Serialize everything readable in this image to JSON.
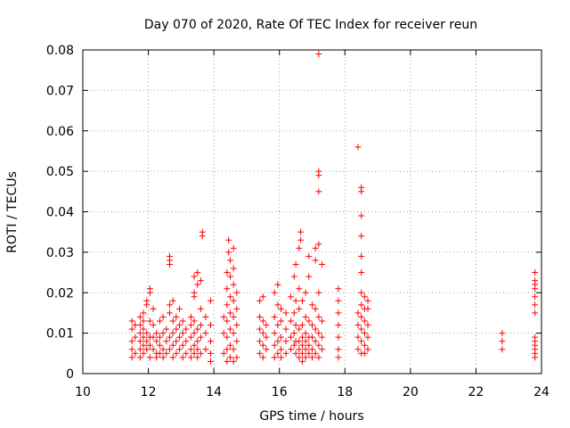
{
  "chart_data": {
    "type": "scatter",
    "title": "Day 070 of 2020, Rate Of TEC Index for receiver reun",
    "xlabel": "GPS time / hours",
    "ylabel": "ROTI / TECUs",
    "xlim": [
      10,
      24
    ],
    "ylim": [
      0,
      0.08
    ],
    "xticks": [
      10,
      12,
      14,
      16,
      18,
      20,
      22,
      24
    ],
    "yticks": [
      0,
      0.01,
      0.02,
      0.03,
      0.04,
      0.05,
      0.06,
      0.07,
      0.08
    ],
    "ytick_labels": [
      "0",
      "0.01",
      "0.02",
      "0.03",
      "0.04",
      "0.05",
      "0.06",
      "0.07",
      "0.08"
    ],
    "grid": true,
    "marker": "+",
    "color": "#ff0000",
    "series": [
      {
        "values": [
          [
            11.5,
            0.004
          ],
          [
            11.5,
            0.006
          ],
          [
            11.5,
            0.008
          ],
          [
            11.5,
            0.011
          ],
          [
            11.5,
            0.013
          ],
          [
            11.6,
            0.005
          ],
          [
            11.6,
            0.009
          ],
          [
            11.6,
            0.012
          ],
          [
            11.75,
            0.004
          ],
          [
            11.75,
            0.006
          ],
          [
            11.75,
            0.008
          ],
          [
            11.75,
            0.01
          ],
          [
            11.75,
            0.012
          ],
          [
            11.75,
            0.014
          ],
          [
            11.85,
            0.005
          ],
          [
            11.85,
            0.007
          ],
          [
            11.85,
            0.009
          ],
          [
            11.85,
            0.011
          ],
          [
            11.85,
            0.013
          ],
          [
            11.85,
            0.015
          ],
          [
            11.95,
            0.006
          ],
          [
            11.95,
            0.008
          ],
          [
            11.95,
            0.01
          ],
          [
            11.95,
            0.017
          ],
          [
            11.95,
            0.018
          ],
          [
            12.05,
            0.004
          ],
          [
            12.05,
            0.007
          ],
          [
            12.05,
            0.009
          ],
          [
            12.05,
            0.013
          ],
          [
            12.05,
            0.02
          ],
          [
            12.05,
            0.021
          ],
          [
            12.15,
            0.006
          ],
          [
            12.15,
            0.009
          ],
          [
            12.15,
            0.012
          ],
          [
            12.15,
            0.016
          ],
          [
            12.25,
            0.004
          ],
          [
            12.25,
            0.005
          ],
          [
            12.25,
            0.008
          ],
          [
            12.25,
            0.01
          ],
          [
            12.35,
            0.005
          ],
          [
            12.35,
            0.007
          ],
          [
            12.35,
            0.009
          ],
          [
            12.35,
            0.013
          ],
          [
            12.45,
            0.004
          ],
          [
            12.45,
            0.006
          ],
          [
            12.45,
            0.01
          ],
          [
            12.45,
            0.014
          ],
          [
            12.55,
            0.005
          ],
          [
            12.55,
            0.008
          ],
          [
            12.55,
            0.011
          ],
          [
            12.65,
            0.006
          ],
          [
            12.65,
            0.009
          ],
          [
            12.65,
            0.015
          ],
          [
            12.65,
            0.017
          ],
          [
            12.65,
            0.027
          ],
          [
            12.65,
            0.028
          ],
          [
            12.65,
            0.029
          ],
          [
            12.75,
            0.004
          ],
          [
            12.75,
            0.007
          ],
          [
            12.75,
            0.01
          ],
          [
            12.75,
            0.013
          ],
          [
            12.75,
            0.018
          ],
          [
            12.85,
            0.005
          ],
          [
            12.85,
            0.008
          ],
          [
            12.85,
            0.011
          ],
          [
            12.85,
            0.014
          ],
          [
            12.95,
            0.006
          ],
          [
            12.95,
            0.009
          ],
          [
            12.95,
            0.012
          ],
          [
            12.95,
            0.016
          ],
          [
            13.05,
            0.004
          ],
          [
            13.05,
            0.007
          ],
          [
            13.05,
            0.01
          ],
          [
            13.05,
            0.013
          ],
          [
            13.15,
            0.005
          ],
          [
            13.15,
            0.008
          ],
          [
            13.15,
            0.011
          ],
          [
            13.3,
            0.004
          ],
          [
            13.3,
            0.006
          ],
          [
            13.3,
            0.009
          ],
          [
            13.3,
            0.012
          ],
          [
            13.3,
            0.014
          ],
          [
            13.4,
            0.005
          ],
          [
            13.4,
            0.007
          ],
          [
            13.4,
            0.01
          ],
          [
            13.4,
            0.013
          ],
          [
            13.4,
            0.019
          ],
          [
            13.4,
            0.02
          ],
          [
            13.4,
            0.024
          ],
          [
            13.5,
            0.004
          ],
          [
            13.5,
            0.006
          ],
          [
            13.5,
            0.008
          ],
          [
            13.5,
            0.011
          ],
          [
            13.5,
            0.022
          ],
          [
            13.5,
            0.025
          ],
          [
            13.6,
            0.005
          ],
          [
            13.6,
            0.009
          ],
          [
            13.6,
            0.012
          ],
          [
            13.6,
            0.016
          ],
          [
            13.6,
            0.023
          ],
          [
            13.65,
            0.034
          ],
          [
            13.65,
            0.035
          ],
          [
            13.75,
            0.006
          ],
          [
            13.75,
            0.01
          ],
          [
            13.75,
            0.014
          ],
          [
            13.9,
            0.003
          ],
          [
            13.9,
            0.005
          ],
          [
            13.9,
            0.008
          ],
          [
            13.9,
            0.012
          ],
          [
            13.9,
            0.018
          ],
          [
            14.3,
            0.005
          ],
          [
            14.3,
            0.01
          ],
          [
            14.3,
            0.014
          ],
          [
            14.4,
            0.003
          ],
          [
            14.4,
            0.006
          ],
          [
            14.4,
            0.009
          ],
          [
            14.4,
            0.013
          ],
          [
            14.4,
            0.017
          ],
          [
            14.4,
            0.021
          ],
          [
            14.4,
            0.025
          ],
          [
            14.45,
            0.03
          ],
          [
            14.45,
            0.033
          ],
          [
            14.5,
            0.004
          ],
          [
            14.5,
            0.007
          ],
          [
            14.5,
            0.011
          ],
          [
            14.5,
            0.015
          ],
          [
            14.5,
            0.019
          ],
          [
            14.5,
            0.024
          ],
          [
            14.5,
            0.028
          ],
          [
            14.6,
            0.003
          ],
          [
            14.6,
            0.006
          ],
          [
            14.6,
            0.01
          ],
          [
            14.6,
            0.014
          ],
          [
            14.6,
            0.018
          ],
          [
            14.6,
            0.022
          ],
          [
            14.6,
            0.026
          ],
          [
            14.6,
            0.031
          ],
          [
            14.7,
            0.004
          ],
          [
            14.7,
            0.008
          ],
          [
            14.7,
            0.012
          ],
          [
            14.7,
            0.016
          ],
          [
            14.7,
            0.02
          ],
          [
            15.4,
            0.005
          ],
          [
            15.4,
            0.008
          ],
          [
            15.4,
            0.011
          ],
          [
            15.4,
            0.014
          ],
          [
            15.4,
            0.018
          ],
          [
            15.5,
            0.004
          ],
          [
            15.5,
            0.007
          ],
          [
            15.5,
            0.01
          ],
          [
            15.5,
            0.013
          ],
          [
            15.5,
            0.019
          ],
          [
            15.6,
            0.006
          ],
          [
            15.6,
            0.009
          ],
          [
            15.6,
            0.012
          ],
          [
            15.85,
            0.004
          ],
          [
            15.85,
            0.007
          ],
          [
            15.85,
            0.01
          ],
          [
            15.85,
            0.014
          ],
          [
            15.85,
            0.02
          ],
          [
            15.95,
            0.005
          ],
          [
            15.95,
            0.008
          ],
          [
            15.95,
            0.012
          ],
          [
            15.95,
            0.017
          ],
          [
            15.95,
            0.022
          ],
          [
            16.05,
            0.004
          ],
          [
            16.05,
            0.006
          ],
          [
            16.05,
            0.009
          ],
          [
            16.05,
            0.013
          ],
          [
            16.05,
            0.016
          ],
          [
            16.2,
            0.005
          ],
          [
            16.2,
            0.008
          ],
          [
            16.2,
            0.011
          ],
          [
            16.2,
            0.015
          ],
          [
            16.35,
            0.006
          ],
          [
            16.35,
            0.009
          ],
          [
            16.35,
            0.013
          ],
          [
            16.35,
            0.019
          ],
          [
            16.45,
            0.007
          ],
          [
            16.45,
            0.01
          ],
          [
            16.45,
            0.015
          ],
          [
            16.45,
            0.024
          ],
          [
            16.5,
            0.005
          ],
          [
            16.5,
            0.008
          ],
          [
            16.5,
            0.012
          ],
          [
            16.5,
            0.018
          ],
          [
            16.5,
            0.027
          ],
          [
            16.6,
            0.004
          ],
          [
            16.6,
            0.006
          ],
          [
            16.6,
            0.008
          ],
          [
            16.6,
            0.011
          ],
          [
            16.6,
            0.016
          ],
          [
            16.6,
            0.021
          ],
          [
            16.6,
            0.031
          ],
          [
            16.65,
            0.035
          ],
          [
            16.65,
            0.033
          ],
          [
            16.7,
            0.003
          ],
          [
            16.7,
            0.005
          ],
          [
            16.7,
            0.007
          ],
          [
            16.7,
            0.009
          ],
          [
            16.7,
            0.012
          ],
          [
            16.7,
            0.018
          ],
          [
            16.8,
            0.004
          ],
          [
            16.8,
            0.006
          ],
          [
            16.8,
            0.008
          ],
          [
            16.8,
            0.01
          ],
          [
            16.8,
            0.014
          ],
          [
            16.8,
            0.02
          ],
          [
            16.9,
            0.005
          ],
          [
            16.9,
            0.007
          ],
          [
            16.9,
            0.009
          ],
          [
            16.9,
            0.013
          ],
          [
            16.9,
            0.024
          ],
          [
            16.9,
            0.029
          ],
          [
            17.0,
            0.004
          ],
          [
            17.0,
            0.006
          ],
          [
            17.0,
            0.009
          ],
          [
            17.0,
            0.012
          ],
          [
            17.0,
            0.017
          ],
          [
            17.1,
            0.005
          ],
          [
            17.1,
            0.008
          ],
          [
            17.1,
            0.011
          ],
          [
            17.1,
            0.016
          ],
          [
            17.1,
            0.028
          ],
          [
            17.1,
            0.031
          ],
          [
            17.2,
            0.004
          ],
          [
            17.2,
            0.007
          ],
          [
            17.2,
            0.01
          ],
          [
            17.2,
            0.014
          ],
          [
            17.2,
            0.02
          ],
          [
            17.2,
            0.032
          ],
          [
            17.2,
            0.045
          ],
          [
            17.2,
            0.049
          ],
          [
            17.2,
            0.05
          ],
          [
            17.2,
            0.079
          ],
          [
            17.3,
            0.006
          ],
          [
            17.3,
            0.009
          ],
          [
            17.3,
            0.013
          ],
          [
            17.3,
            0.027
          ],
          [
            17.8,
            0.004
          ],
          [
            17.8,
            0.006
          ],
          [
            17.8,
            0.009
          ],
          [
            17.8,
            0.012
          ],
          [
            17.8,
            0.015
          ],
          [
            17.8,
            0.018
          ],
          [
            17.8,
            0.021
          ],
          [
            18.4,
            0.006
          ],
          [
            18.4,
            0.009
          ],
          [
            18.4,
            0.012
          ],
          [
            18.4,
            0.015
          ],
          [
            18.4,
            0.056
          ],
          [
            18.5,
            0.005
          ],
          [
            18.5,
            0.008
          ],
          [
            18.5,
            0.011
          ],
          [
            18.5,
            0.014
          ],
          [
            18.5,
            0.017
          ],
          [
            18.5,
            0.02
          ],
          [
            18.5,
            0.025
          ],
          [
            18.5,
            0.029
          ],
          [
            18.5,
            0.034
          ],
          [
            18.5,
            0.039
          ],
          [
            18.5,
            0.045
          ],
          [
            18.5,
            0.046
          ],
          [
            18.6,
            0.005
          ],
          [
            18.6,
            0.007
          ],
          [
            18.6,
            0.01
          ],
          [
            18.6,
            0.013
          ],
          [
            18.6,
            0.016
          ],
          [
            18.6,
            0.019
          ],
          [
            18.7,
            0.006
          ],
          [
            18.7,
            0.009
          ],
          [
            18.7,
            0.012
          ],
          [
            18.7,
            0.016
          ],
          [
            18.7,
            0.018
          ],
          [
            22.8,
            0.006
          ],
          [
            22.8,
            0.008
          ],
          [
            22.8,
            0.01
          ],
          [
            23.8,
            0.004
          ],
          [
            23.8,
            0.005
          ],
          [
            23.8,
            0.006
          ],
          [
            23.8,
            0.007
          ],
          [
            23.8,
            0.008
          ],
          [
            23.8,
            0.009
          ],
          [
            23.8,
            0.015
          ],
          [
            23.8,
            0.017
          ],
          [
            23.8,
            0.019
          ],
          [
            23.8,
            0.021
          ],
          [
            23.8,
            0.022
          ],
          [
            23.8,
            0.023
          ],
          [
            23.8,
            0.025
          ]
        ]
      }
    ]
  }
}
